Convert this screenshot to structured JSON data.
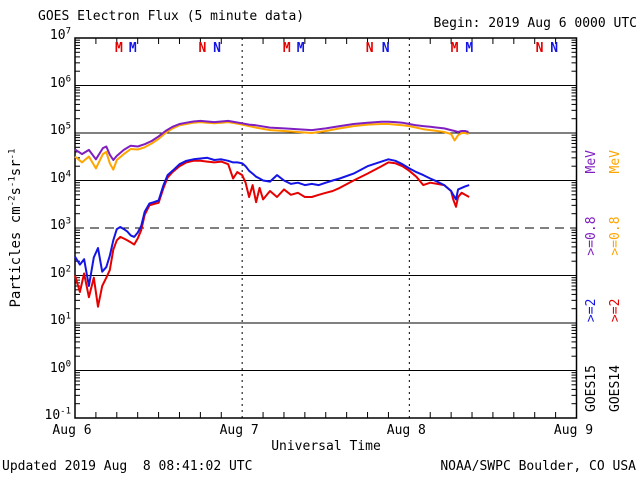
{
  "header": {
    "title": "GOES Electron Flux (5 minute data)",
    "begin_label": "Begin: 2019 Aug 6 0000 UTC"
  },
  "footer": {
    "updated": "Updated 2019 Aug  8 08:41:02 UTC",
    "source": "NOAA/SWPC Boulder, CO USA"
  },
  "colors": {
    "goes15_e2": "#1414e6",
    "goes15_e08": "#801fc0",
    "goes14_e2": "#e60000",
    "goes14_e08": "#ffa500",
    "axis": "#000000"
  },
  "ylabel_parts": {
    "p0": "Particles cm",
    "s0": "-2",
    "p1": "s",
    "s1": "-1",
    "p2": "sr",
    "s2": "-1"
  },
  "legend": {
    "columns": [
      {
        "sat": "GOES15",
        "ge2": ">=2",
        "ge08": ">=0.8",
        "mev": "MeV",
        "sat_color": "#000000",
        "ge2_color": "#1414e6",
        "ge08_color": "#801fc0"
      },
      {
        "sat": "GOES14",
        "ge2": ">=2",
        "ge08": ">=0.8",
        "mev": "MeV",
        "sat_color": "#000000",
        "ge2_color": "#e60000",
        "ge08_color": "#ffa500"
      }
    ]
  },
  "chart_data": {
    "type": "line",
    "title": "GOES Electron Flux (5 minute data)",
    "xlabel": "Universal Time",
    "ylabel": "Particles cm-2 s-1 sr-1",
    "x_unit_hours_from": "2019 Aug 6 0000 UTC",
    "x_range": [
      0,
      72
    ],
    "y_log_range": [
      -1,
      7
    ],
    "y_tick_exponents": [
      7,
      6,
      5,
      4,
      3,
      2,
      1,
      0,
      -1
    ],
    "solid_gridline_exponents": [
      6,
      5,
      4,
      2,
      1,
      0
    ],
    "dashed_threshold_value": 1000,
    "day_boundaries_hours": [
      24,
      48
    ],
    "minor_tick_hours_step": 3,
    "x_ticks": [
      {
        "hour": 0,
        "label": "Aug 6"
      },
      {
        "hour": 24,
        "label": "Aug 7"
      },
      {
        "hour": 48,
        "label": "Aug 8"
      },
      {
        "hour": 72,
        "label": "Aug 9"
      }
    ],
    "markers": [
      {
        "letter": "M",
        "color": "#e60000",
        "hour": 6.3
      },
      {
        "letter": "M",
        "color": "#1414e6",
        "hour": 8.3
      },
      {
        "letter": "N",
        "color": "#e60000",
        "hour": 18.3
      },
      {
        "letter": "N",
        "color": "#1414e6",
        "hour": 20.4
      },
      {
        "letter": "M",
        "color": "#e60000",
        "hour": 30.4
      },
      {
        "letter": "M",
        "color": "#1414e6",
        "hour": 32.4
      },
      {
        "letter": "N",
        "color": "#e60000",
        "hour": 42.3
      },
      {
        "letter": "N",
        "color": "#1414e6",
        "hour": 44.6
      },
      {
        "letter": "M",
        "color": "#e60000",
        "hour": 54.5
      },
      {
        "letter": "M",
        "color": "#1414e6",
        "hour": 56.6
      },
      {
        "letter": "N",
        "color": "#e60000",
        "hour": 66.7
      },
      {
        "letter": "N",
        "color": "#1414e6",
        "hour": 68.8
      }
    ],
    "series": [
      {
        "name": "GOES14 >=0.8 MeV",
        "color": "#ffa500",
        "x": [
          0,
          1,
          2,
          3,
          4,
          4.5,
          5,
          5.5,
          6,
          7,
          8,
          9,
          10,
          11,
          12,
          13,
          14,
          15,
          16,
          17,
          18,
          19,
          20,
          21,
          22,
          23,
          24,
          25,
          26,
          28,
          30,
          32,
          34,
          36,
          38,
          40,
          42,
          44,
          45,
          46,
          47,
          48,
          49,
          50,
          51,
          52,
          53,
          54,
          54.5,
          55,
          55.5,
          56,
          56.5
        ],
        "y": [
          32000,
          24000,
          32000,
          18000,
          36000,
          40000,
          23000,
          17000,
          27000,
          36000,
          46000,
          45000,
          50000,
          60000,
          75000,
          100000,
          125000,
          145000,
          155000,
          165000,
          170000,
          165000,
          160000,
          165000,
          170000,
          160000,
          150000,
          140000,
          130000,
          115000,
          110000,
          105000,
          100000,
          110000,
          125000,
          140000,
          150000,
          155000,
          155000,
          150000,
          145000,
          140000,
          130000,
          120000,
          115000,
          110000,
          105000,
          95000,
          70000,
          90000,
          100000,
          100000,
          95000
        ]
      },
      {
        "name": "GOES15 >=0.8 MeV",
        "color": "#801fc0",
        "x": [
          0,
          1,
          2,
          3,
          4,
          4.5,
          5,
          5.5,
          6,
          7,
          8,
          9,
          10,
          11,
          12,
          13,
          14,
          15,
          16,
          17,
          18,
          19,
          20,
          21,
          22,
          23,
          24,
          25,
          26,
          28,
          30,
          32,
          34,
          36,
          38,
          40,
          42,
          44,
          45,
          46,
          47,
          48,
          49,
          50,
          51,
          52,
          53,
          54,
          54.5,
          55,
          55.5,
          56,
          56.5
        ],
        "y": [
          45000,
          36000,
          44000,
          28000,
          48000,
          52000,
          35000,
          27000,
          33000,
          44000,
          54000,
          52000,
          58000,
          68000,
          85000,
          110000,
          135000,
          155000,
          165000,
          175000,
          180000,
          175000,
          170000,
          175000,
          180000,
          170000,
          160000,
          150000,
          145000,
          130000,
          125000,
          120000,
          115000,
          125000,
          140000,
          155000,
          165000,
          172000,
          173000,
          170000,
          165000,
          155000,
          145000,
          140000,
          135000,
          130000,
          125000,
          115000,
          110000,
          105000,
          110000,
          110000,
          105000
        ]
      },
      {
        "name": "GOES14 >=2 MeV",
        "color": "#e60000",
        "x": [
          0,
          0.7,
          1.3,
          2,
          2.7,
          3.3,
          3.9,
          4.5,
          5,
          5.5,
          6,
          6.5,
          7,
          7.5,
          8,
          8.5,
          9,
          9.5,
          10,
          10.7,
          11.3,
          12,
          12.7,
          13.3,
          14,
          15,
          16,
          17,
          18,
          19,
          20,
          21,
          22,
          22.7,
          23.3,
          24,
          24.5,
          25,
          25.5,
          26,
          26.5,
          27,
          28,
          29,
          30,
          31,
          32,
          33,
          34,
          35,
          36,
          37,
          38,
          40,
          42,
          44,
          45,
          46,
          47,
          48,
          49,
          50,
          51,
          52,
          53,
          54,
          54.3,
          54.7,
          55,
          55.5,
          56,
          56.6
        ],
        "y": [
          100,
          45,
          110,
          35,
          90,
          22,
          60,
          90,
          130,
          350,
          550,
          650,
          600,
          550,
          500,
          450,
          600,
          900,
          1900,
          3000,
          3200,
          3400,
          7000,
          11500,
          15000,
          20000,
          24000,
          26000,
          26000,
          25000,
          24000,
          25000,
          22000,
          11000,
          15000,
          13000,
          9000,
          4500,
          8000,
          3500,
          7000,
          4000,
          6000,
          4500,
          6500,
          5000,
          5500,
          4500,
          4500,
          5000,
          5500,
          6000,
          7000,
          10000,
          14000,
          20000,
          24000,
          23000,
          20000,
          16000,
          12000,
          8000,
          9000,
          8500,
          8000,
          6000,
          4000,
          2800,
          4500,
          5500,
          5000,
          4500
        ]
      },
      {
        "name": "GOES15 >=2 MeV",
        "color": "#1414e6",
        "x": [
          0,
          0.7,
          1.3,
          2,
          2.7,
          3.3,
          3.9,
          4.5,
          5,
          5.5,
          6,
          6.5,
          7,
          7.5,
          8,
          8.5,
          9,
          9.5,
          10,
          10.7,
          11.3,
          12,
          12.7,
          13.3,
          14,
          15,
          16,
          17,
          18,
          19,
          20,
          21,
          22,
          22.7,
          23.3,
          24,
          24.5,
          25,
          25.5,
          26,
          26.5,
          27,
          28,
          29,
          30,
          31,
          32,
          33,
          34,
          35,
          36,
          37,
          38,
          40,
          42,
          44,
          45,
          46,
          47,
          48,
          49,
          50,
          51,
          52,
          53,
          54,
          54.3,
          54.7,
          55,
          55.5,
          56,
          56.6
        ],
        "y": [
          250,
          170,
          220,
          60,
          240,
          380,
          120,
          150,
          260,
          550,
          950,
          1050,
          950,
          850,
          700,
          650,
          800,
          1100,
          2200,
          3300,
          3500,
          3800,
          8000,
          13000,
          16000,
          22000,
          26000,
          28000,
          29000,
          30000,
          27000,
          28000,
          26000,
          24000,
          24000,
          23000,
          20000,
          16000,
          14000,
          12000,
          11000,
          10000,
          9500,
          13000,
          10000,
          8500,
          9000,
          8000,
          8500,
          8000,
          9000,
          10000,
          11000,
          14000,
          20000,
          25000,
          28000,
          26000,
          22000,
          18000,
          15000,
          13000,
          11000,
          9500,
          8000,
          6000,
          5000,
          4000,
          6500,
          7000,
          7500,
          8000
        ]
      }
    ]
  }
}
